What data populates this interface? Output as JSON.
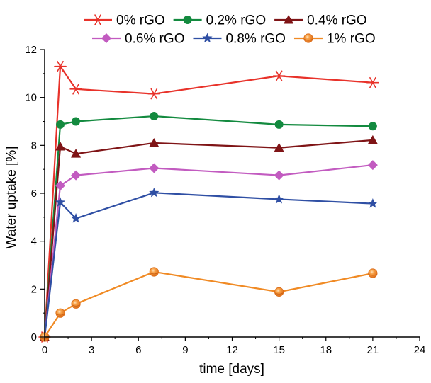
{
  "chart_data": {
    "type": "line",
    "title": "",
    "xlabel": "time [days]",
    "ylabel": "Water uptake [%]",
    "xlim": [
      0,
      24
    ],
    "ylim": [
      0,
      12
    ],
    "xticks": [
      0,
      3,
      6,
      9,
      12,
      15,
      18,
      21,
      24
    ],
    "yticks": [
      0,
      2,
      4,
      6,
      8,
      10,
      12
    ],
    "grid": false,
    "legend_position": "top",
    "x": [
      0,
      1,
      2,
      7,
      15,
      21
    ],
    "series": [
      {
        "name": "0% rGO",
        "color": "#e8322a",
        "marker": "asterisk",
        "values": [
          0,
          11.3,
          10.35,
          10.15,
          10.9,
          10.62
        ]
      },
      {
        "name": "0.2% rGO",
        "color": "#138a3f",
        "marker": "circle",
        "values": [
          0,
          8.87,
          9.0,
          9.22,
          8.87,
          8.8
        ]
      },
      {
        "name": "0.4% rGO",
        "color": "#7f1416",
        "marker": "triangle",
        "values": [
          0,
          7.95,
          7.65,
          8.1,
          7.9,
          8.22
        ]
      },
      {
        "name": "0.6% rGO",
        "color": "#c25bc0",
        "marker": "diamond",
        "values": [
          0,
          6.32,
          6.75,
          7.05,
          6.75,
          7.18
        ]
      },
      {
        "name": "0.8% rGO",
        "color": "#2f4fa4",
        "marker": "star",
        "values": [
          0,
          5.62,
          4.95,
          6.02,
          5.75,
          5.57
        ]
      },
      {
        "name": "1% rGO",
        "color": "#f08a24",
        "marker": "sphere",
        "values": [
          0,
          1.0,
          1.38,
          2.72,
          1.88,
          2.66
        ]
      }
    ]
  }
}
